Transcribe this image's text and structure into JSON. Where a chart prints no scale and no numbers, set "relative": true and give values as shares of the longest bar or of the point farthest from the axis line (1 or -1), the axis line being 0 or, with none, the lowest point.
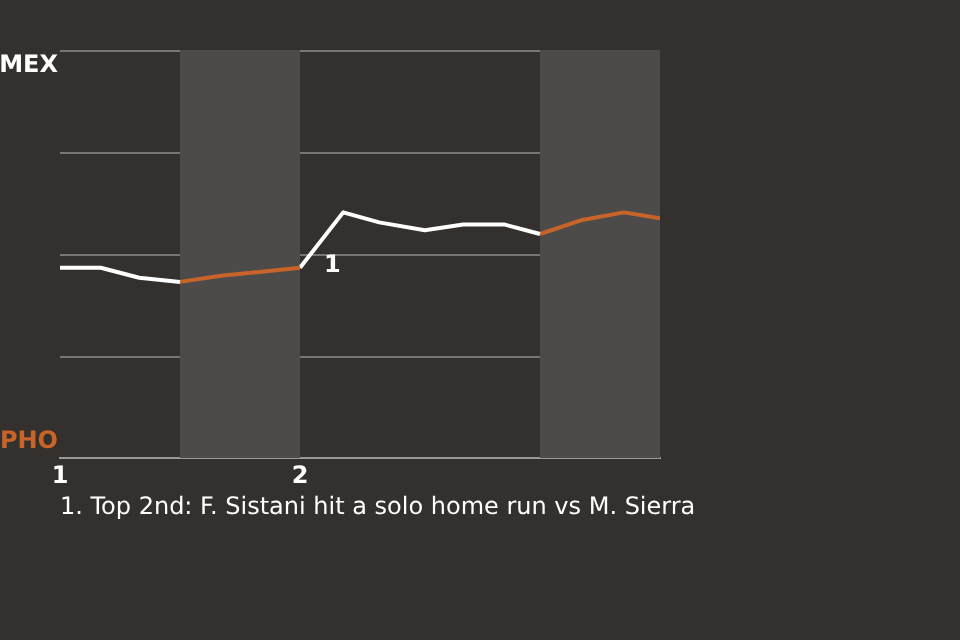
{
  "chart_data": {
    "type": "line",
    "relative": true,
    "xlim": [
      1,
      3.5
    ],
    "xticks": [
      1,
      2
    ],
    "legend": false,
    "marker": "none",
    "series": [
      {
        "color": "#ffffff",
        "x": [
          1,
          1.17,
          1.33,
          1.5
        ],
        "values": [
          -0.33,
          -0.33,
          -0.57,
          -0.67
        ]
      },
      {
        "color": "#c8642a",
        "x": [
          1.5,
          1.67,
          1.83,
          2
        ],
        "values": [
          -0.67,
          -0.52,
          -0.43,
          -0.33
        ]
      },
      {
        "color": "#ffffff",
        "x": [
          2,
          2.18,
          2.33,
          2.52,
          2.68,
          2.85,
          3
        ],
        "values": [
          -0.33,
          1,
          0.76,
          0.57,
          0.71,
          0.71,
          0.48
        ]
      },
      {
        "color": "#c8642a",
        "x": [
          3,
          3.17,
          3.35,
          3.5
        ],
        "values": [
          0.48,
          0.81,
          1,
          0.86
        ]
      }
    ],
    "bands": [
      {
        "axis": "x",
        "from": 1.5,
        "to": 2,
        "color": "#4d4b49"
      },
      {
        "axis": "x",
        "from": 3,
        "to": 3.5,
        "color": "#4d4b49"
      }
    ],
    "annotations": [
      "MEX",
      "PHO",
      {
        "text": "1",
        "x": 2,
        "y": -0.33
      },
      "1. Top 2nd: F. Sistani hit a solo home run vs M. Sierra"
    ]
  }
}
